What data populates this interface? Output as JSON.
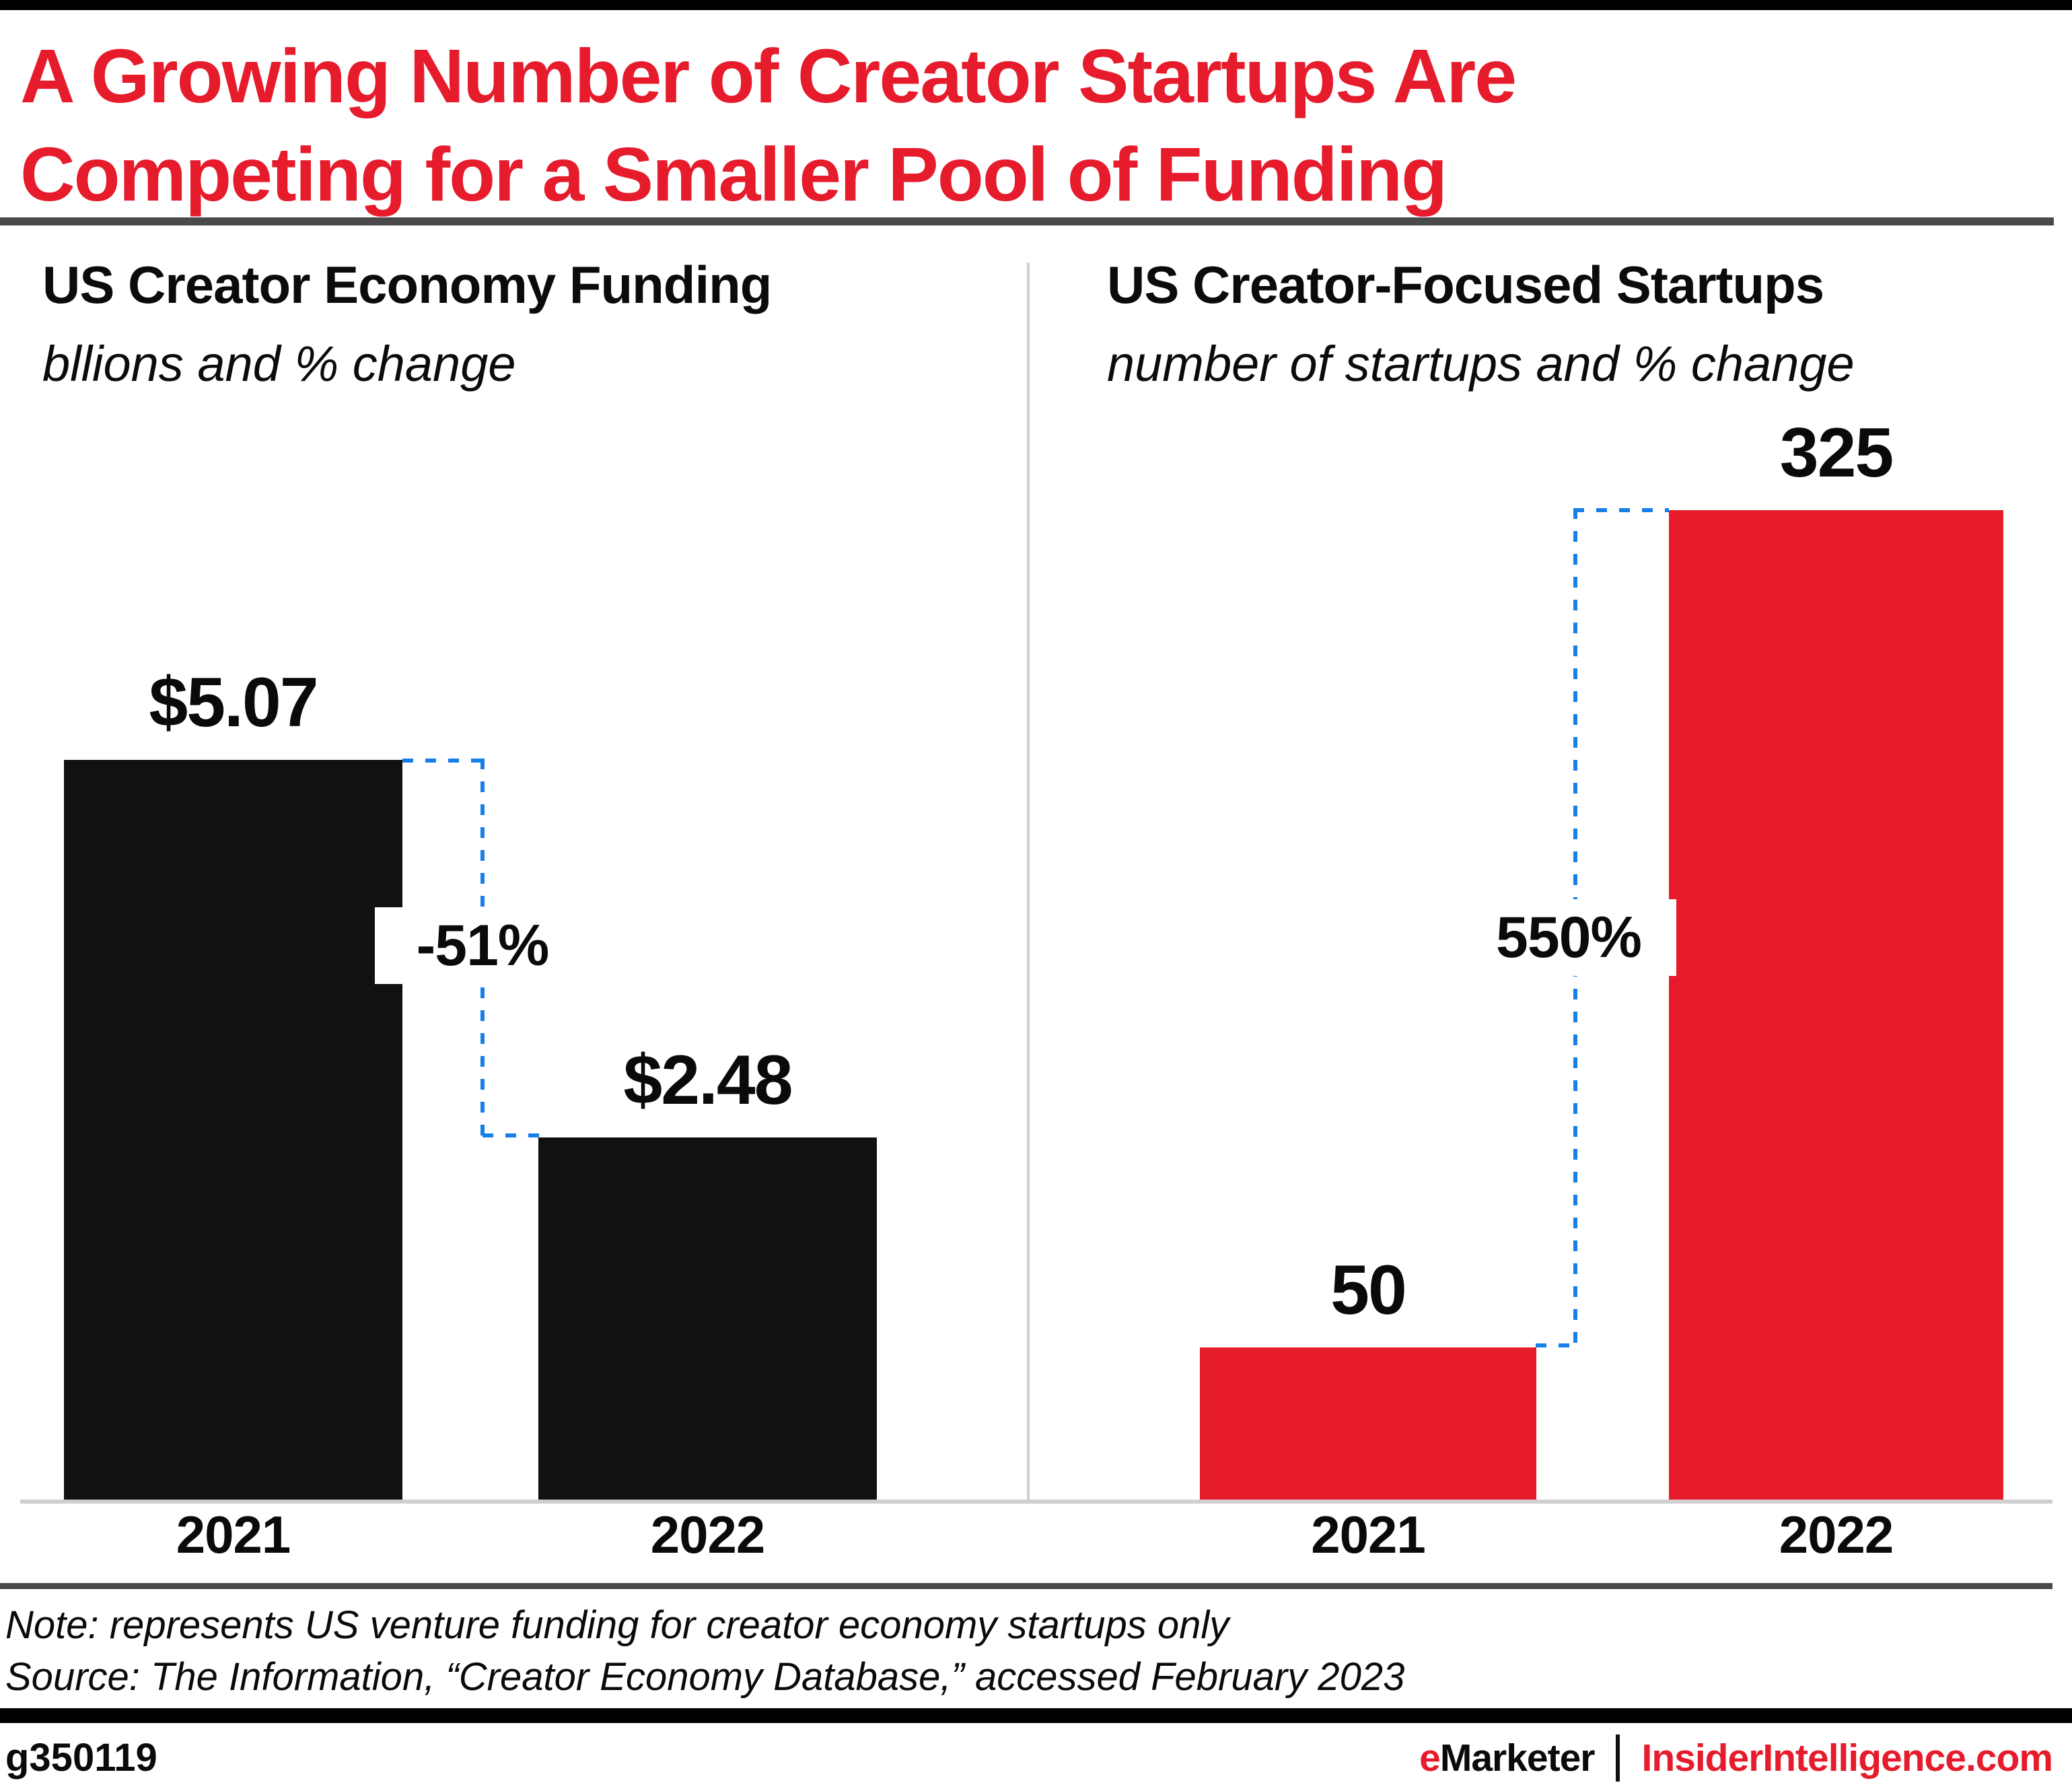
{
  "page_title": {
    "line1": "A Growing Number of Creator Startups Are",
    "line2": "Competing for a Smaller Pool of Funding"
  },
  "chart_data": [
    {
      "type": "bar",
      "title": "US Creator Economy Funding",
      "subtitle": "bllions and % change",
      "categories": [
        "2021",
        "2022"
      ],
      "values": [
        5.07,
        2.48
      ],
      "value_labels": [
        "$5.07",
        "$2.48"
      ],
      "change_annotation": "-51%",
      "bar_color": "#111111",
      "ylim": [
        0,
        5.07
      ],
      "grid": false,
      "legend": false
    },
    {
      "type": "bar",
      "title": "US Creator-Focused Startups",
      "subtitle": "number of startups and % change",
      "categories": [
        "2021",
        "2022"
      ],
      "values": [
        50,
        325
      ],
      "value_labels": [
        "50",
        "325"
      ],
      "change_annotation": "550%",
      "bar_color": "#e61b2b",
      "ylim": [
        0,
        325
      ],
      "grid": false,
      "legend": false
    }
  ],
  "notes": {
    "note_line": "Note: represents US venture funding for creator economy startups only",
    "source_line": "Source: The Information, “Creator Economy Database,” accessed February 2023"
  },
  "footer": {
    "chart_id": "g350119",
    "brand_prefix": "e",
    "brand_name": "Marketer",
    "site": "InsiderIntelligence.com"
  },
  "colors": {
    "accent_red": "#e61b2b",
    "connector_blue": "#177fe8",
    "rule_dark": "#4a4a4a",
    "rule_light": "#cfcfcf"
  }
}
